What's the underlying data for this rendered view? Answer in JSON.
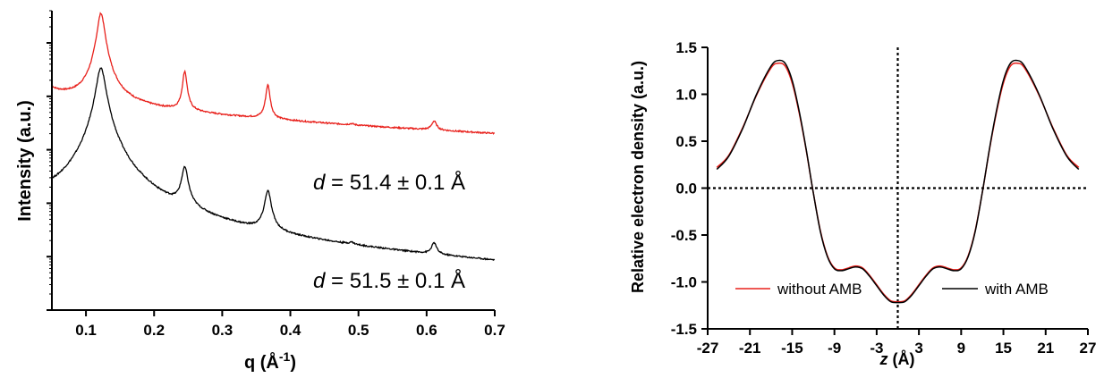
{
  "chart_data": [
    {
      "type": "line",
      "xlabel": "q (Å",
      "xlabel_sup": "-1",
      "xlabel_close": ")",
      "ylabel": "Intensity (a.u.)",
      "xlim": [
        0.05,
        0.7
      ],
      "ylog": true,
      "ylim": [
        0.1,
        40000
      ],
      "xticks": [
        "0.1",
        "0.2",
        "0.3",
        "0.4",
        "0.5",
        "0.6",
        "0.7"
      ],
      "xtick_values": [
        0.1,
        0.2,
        0.3,
        0.4,
        0.5,
        0.6,
        0.7
      ],
      "ytick_values": [
        1,
        10,
        100,
        1000,
        10000
      ],
      "series": [
        {
          "color": "#e8201b",
          "baseline_start": 1500,
          "baseline_end": 200,
          "peaks": [
            {
              "q": 0.122,
              "height": 35000,
              "width": 0.005
            },
            {
              "q": 0.245,
              "height": 2400,
              "width": 0.003
            },
            {
              "q": 0.367,
              "height": 1250,
              "width": 0.003
            },
            {
              "q": 0.49,
              "height": 16,
              "width": 0.004
            },
            {
              "q": 0.611,
              "height": 110,
              "width": 0.004
            }
          ]
        },
        {
          "color": "#000000",
          "baseline_start": 7,
          "baseline_end": 0.5,
          "peaks": [
            {
              "q": 0.122,
              "height": 3400,
              "width": 0.006
            },
            {
              "q": 0.245,
              "height": 38,
              "width": 0.0045
            },
            {
              "q": 0.367,
              "height": 14,
              "width": 0.0045
            },
            {
              "q": 0.49,
              "height": 0.15,
              "width": 0.004
            },
            {
              "q": 0.611,
              "height": 0.7,
              "width": 0.004
            }
          ]
        }
      ],
      "annotations": [
        {
          "var": "d",
          "text": " = 51.4 ± 0.1 Å",
          "color": "#e8201b"
        },
        {
          "var": "d",
          "text": " = 51.5 ± 0.1 Å",
          "color": "#000000"
        }
      ]
    },
    {
      "type": "line",
      "xlabel_var": "z",
      "xlabel": " (Å)",
      "ylabel": "Relative electron density (a.u.)",
      "xlim": [
        -27,
        27
      ],
      "ylim": [
        -1.5,
        1.5
      ],
      "xticks": [
        "-27",
        "-21",
        "-15",
        "-9",
        "-3",
        "3",
        "9",
        "15",
        "21",
        "27"
      ],
      "xtick_values": [
        -27,
        -21,
        -15,
        -9,
        -3,
        3,
        9,
        15,
        21,
        27
      ],
      "yticks": [
        "1.5",
        "1.0",
        "0.5",
        "0.0",
        "-0.5",
        "-1.0",
        "-1.5"
      ],
      "ytick_values": [
        1.5,
        1.0,
        0.5,
        0.0,
        -0.5,
        -1.0,
        -1.5
      ],
      "reference_lines": {
        "y": 0,
        "x": 0,
        "style": "dotted"
      },
      "legend": {
        "position": "bottom"
      },
      "series": [
        {
          "name": "without AMB",
          "color": "#e8201b",
          "x": [
            -25.7,
            -24,
            -22,
            -20,
            -18,
            -17,
            -16,
            -15,
            -14,
            -13,
            -12,
            -11,
            -10,
            -9,
            -8,
            -7,
            -6,
            -5,
            -4,
            -3,
            -2,
            -1,
            0,
            1,
            2,
            3,
            4,
            5,
            6,
            7,
            8,
            9,
            10,
            11,
            12,
            13,
            14,
            15,
            16,
            17,
            18,
            20,
            22,
            24,
            25.7
          ],
          "y": [
            0.22,
            0.35,
            0.65,
            1.0,
            1.28,
            1.33,
            1.3,
            1.12,
            0.8,
            0.4,
            -0.05,
            -0.45,
            -0.72,
            -0.85,
            -0.87,
            -0.85,
            -0.83,
            -0.85,
            -0.93,
            -1.03,
            -1.13,
            -1.2,
            -1.21,
            -1.2,
            -1.13,
            -1.03,
            -0.93,
            -0.85,
            -0.83,
            -0.85,
            -0.87,
            -0.85,
            -0.72,
            -0.45,
            -0.05,
            0.4,
            0.8,
            1.12,
            1.3,
            1.33,
            1.28,
            1.0,
            0.65,
            0.35,
            0.22
          ]
        },
        {
          "name": "with AMB",
          "color": "#000000",
          "x": [
            -25.7,
            -24,
            -22,
            -20,
            -18,
            -17,
            -16,
            -15,
            -14,
            -13,
            -12,
            -11,
            -10,
            -9,
            -8,
            -7,
            -6,
            -5,
            -4,
            -3,
            -2,
            -1,
            0,
            1,
            2,
            3,
            4,
            5,
            6,
            7,
            8,
            9,
            10,
            11,
            12,
            13,
            14,
            15,
            16,
            17,
            18,
            20,
            22,
            24,
            25.7
          ],
          "y": [
            0.2,
            0.34,
            0.64,
            1.01,
            1.3,
            1.36,
            1.33,
            1.15,
            0.82,
            0.41,
            -0.05,
            -0.46,
            -0.73,
            -0.86,
            -0.88,
            -0.86,
            -0.84,
            -0.86,
            -0.94,
            -1.04,
            -1.14,
            -1.21,
            -1.22,
            -1.21,
            -1.14,
            -1.04,
            -0.94,
            -0.86,
            -0.84,
            -0.86,
            -0.88,
            -0.86,
            -0.73,
            -0.46,
            -0.05,
            0.41,
            0.82,
            1.15,
            1.33,
            1.36,
            1.3,
            1.01,
            0.64,
            0.34,
            0.2
          ]
        }
      ]
    }
  ]
}
